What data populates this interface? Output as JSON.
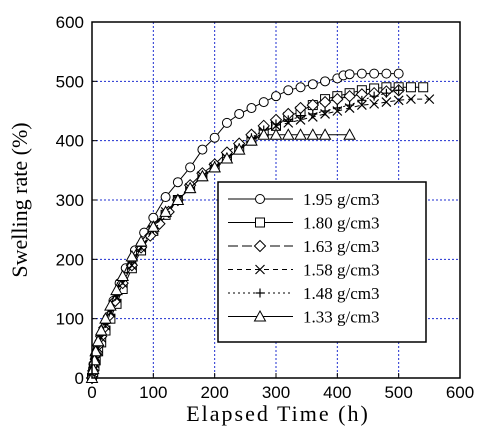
{
  "chart_data": {
    "type": "line",
    "title": "",
    "xlabel": "Elapsed Time (h)",
    "ylabel": "Swelling rate (%)",
    "xlim": [
      0,
      600
    ],
    "ylim": [
      0,
      600
    ],
    "x_ticks": [
      "0",
      "100",
      "200",
      "300",
      "400",
      "500",
      "600"
    ],
    "y_ticks": [
      "0",
      "100",
      "200",
      "300",
      "400",
      "500",
      "600"
    ],
    "grid": true,
    "legend_position": "lower-right",
    "series": [
      {
        "name": "1.95 g/cm3",
        "marker": "circle",
        "dash": "solid",
        "x": [
          0,
          1,
          2,
          3,
          5,
          8,
          12,
          18,
          25,
          35,
          45,
          55,
          70,
          85,
          100,
          120,
          140,
          160,
          180,
          200,
          220,
          240,
          260,
          280,
          300,
          320,
          340,
          360,
          380,
          400,
          410,
          420,
          440,
          460,
          480,
          500
        ],
        "y": [
          0,
          8,
          15,
          22,
          32,
          45,
          60,
          80,
          100,
          130,
          160,
          185,
          215,
          245,
          270,
          305,
          330,
          355,
          385,
          405,
          430,
          445,
          455,
          465,
          475,
          485,
          490,
          495,
          500,
          505,
          510,
          512,
          513,
          513,
          513,
          513
        ]
      },
      {
        "name": "1.80 g/cm3",
        "marker": "square",
        "dash": "solid",
        "x": [
          0,
          2,
          4,
          6,
          10,
          15,
          22,
          30,
          40,
          50,
          65,
          80,
          100,
          120,
          140,
          160,
          180,
          200,
          220,
          240,
          260,
          280,
          300,
          320,
          340,
          360,
          380,
          400,
          420,
          440,
          460,
          480,
          500,
          520,
          540
        ],
        "y": [
          0,
          10,
          20,
          30,
          45,
          60,
          80,
          100,
          125,
          150,
          185,
          215,
          248,
          275,
          300,
          320,
          340,
          355,
          370,
          385,
          400,
          415,
          425,
          440,
          450,
          460,
          470,
          475,
          480,
          485,
          488,
          490,
          490,
          490,
          490
        ]
      },
      {
        "name": "1.63 g/cm3",
        "marker": "diamond",
        "dash": "longdash",
        "x": [
          0,
          2,
          4,
          7,
          10,
          15,
          20,
          28,
          38,
          50,
          65,
          80,
          95,
          110,
          125,
          140,
          160,
          180,
          200,
          220,
          240,
          260,
          280,
          300,
          320,
          340,
          360,
          380,
          400,
          420,
          440,
          460,
          480,
          500
        ],
        "y": [
          0,
          12,
          25,
          40,
          55,
          70,
          85,
          105,
          130,
          160,
          190,
          220,
          240,
          260,
          280,
          300,
          325,
          345,
          360,
          380,
          395,
          410,
          425,
          435,
          445,
          455,
          460,
          465,
          470,
          475,
          478,
          480,
          483,
          485
        ]
      },
      {
        "name": "1.58 g/cm3",
        "marker": "x",
        "dash": "dash",
        "x": [
          0,
          2,
          4,
          6,
          10,
          15,
          22,
          30,
          40,
          50,
          65,
          80,
          100,
          120,
          140,
          160,
          180,
          200,
          220,
          240,
          260,
          280,
          300,
          320,
          340,
          360,
          380,
          400,
          420,
          440,
          460,
          480,
          500,
          520,
          550
        ],
        "y": [
          0,
          12,
          25,
          35,
          50,
          68,
          88,
          110,
          135,
          160,
          190,
          220,
          250,
          280,
          300,
          320,
          340,
          355,
          370,
          385,
          400,
          415,
          425,
          430,
          435,
          440,
          445,
          450,
          455,
          460,
          462,
          465,
          468,
          470,
          470
        ]
      },
      {
        "name": "1.48 g/cm3",
        "marker": "plus",
        "dash": "dashdot",
        "x": [
          0,
          2,
          4,
          6,
          10,
          15,
          22,
          30,
          40,
          50,
          65,
          80,
          100,
          120,
          140,
          160,
          180,
          200,
          220,
          240,
          260,
          280,
          300,
          320,
          340,
          360,
          380,
          400,
          420,
          440,
          460,
          480,
          500
        ],
        "y": [
          0,
          12,
          25,
          35,
          55,
          72,
          92,
          115,
          140,
          165,
          195,
          222,
          252,
          280,
          300,
          320,
          340,
          358,
          372,
          388,
          405,
          418,
          428,
          435,
          440,
          445,
          450,
          455,
          460,
          468,
          475,
          480,
          485
        ]
      },
      {
        "name": "1.33 g/cm3",
        "marker": "triangle",
        "dash": "solid",
        "x": [
          0,
          2,
          4,
          6,
          10,
          15,
          22,
          30,
          40,
          50,
          65,
          80,
          100,
          120,
          140,
          160,
          180,
          200,
          220,
          240,
          260,
          280,
          300,
          320,
          340,
          360,
          380,
          420
        ],
        "y": [
          0,
          15,
          30,
          45,
          62,
          80,
          100,
          122,
          148,
          172,
          205,
          230,
          255,
          280,
          300,
          320,
          340,
          355,
          370,
          385,
          400,
          410,
          410,
          410,
          410,
          410,
          410,
          410
        ]
      }
    ]
  }
}
